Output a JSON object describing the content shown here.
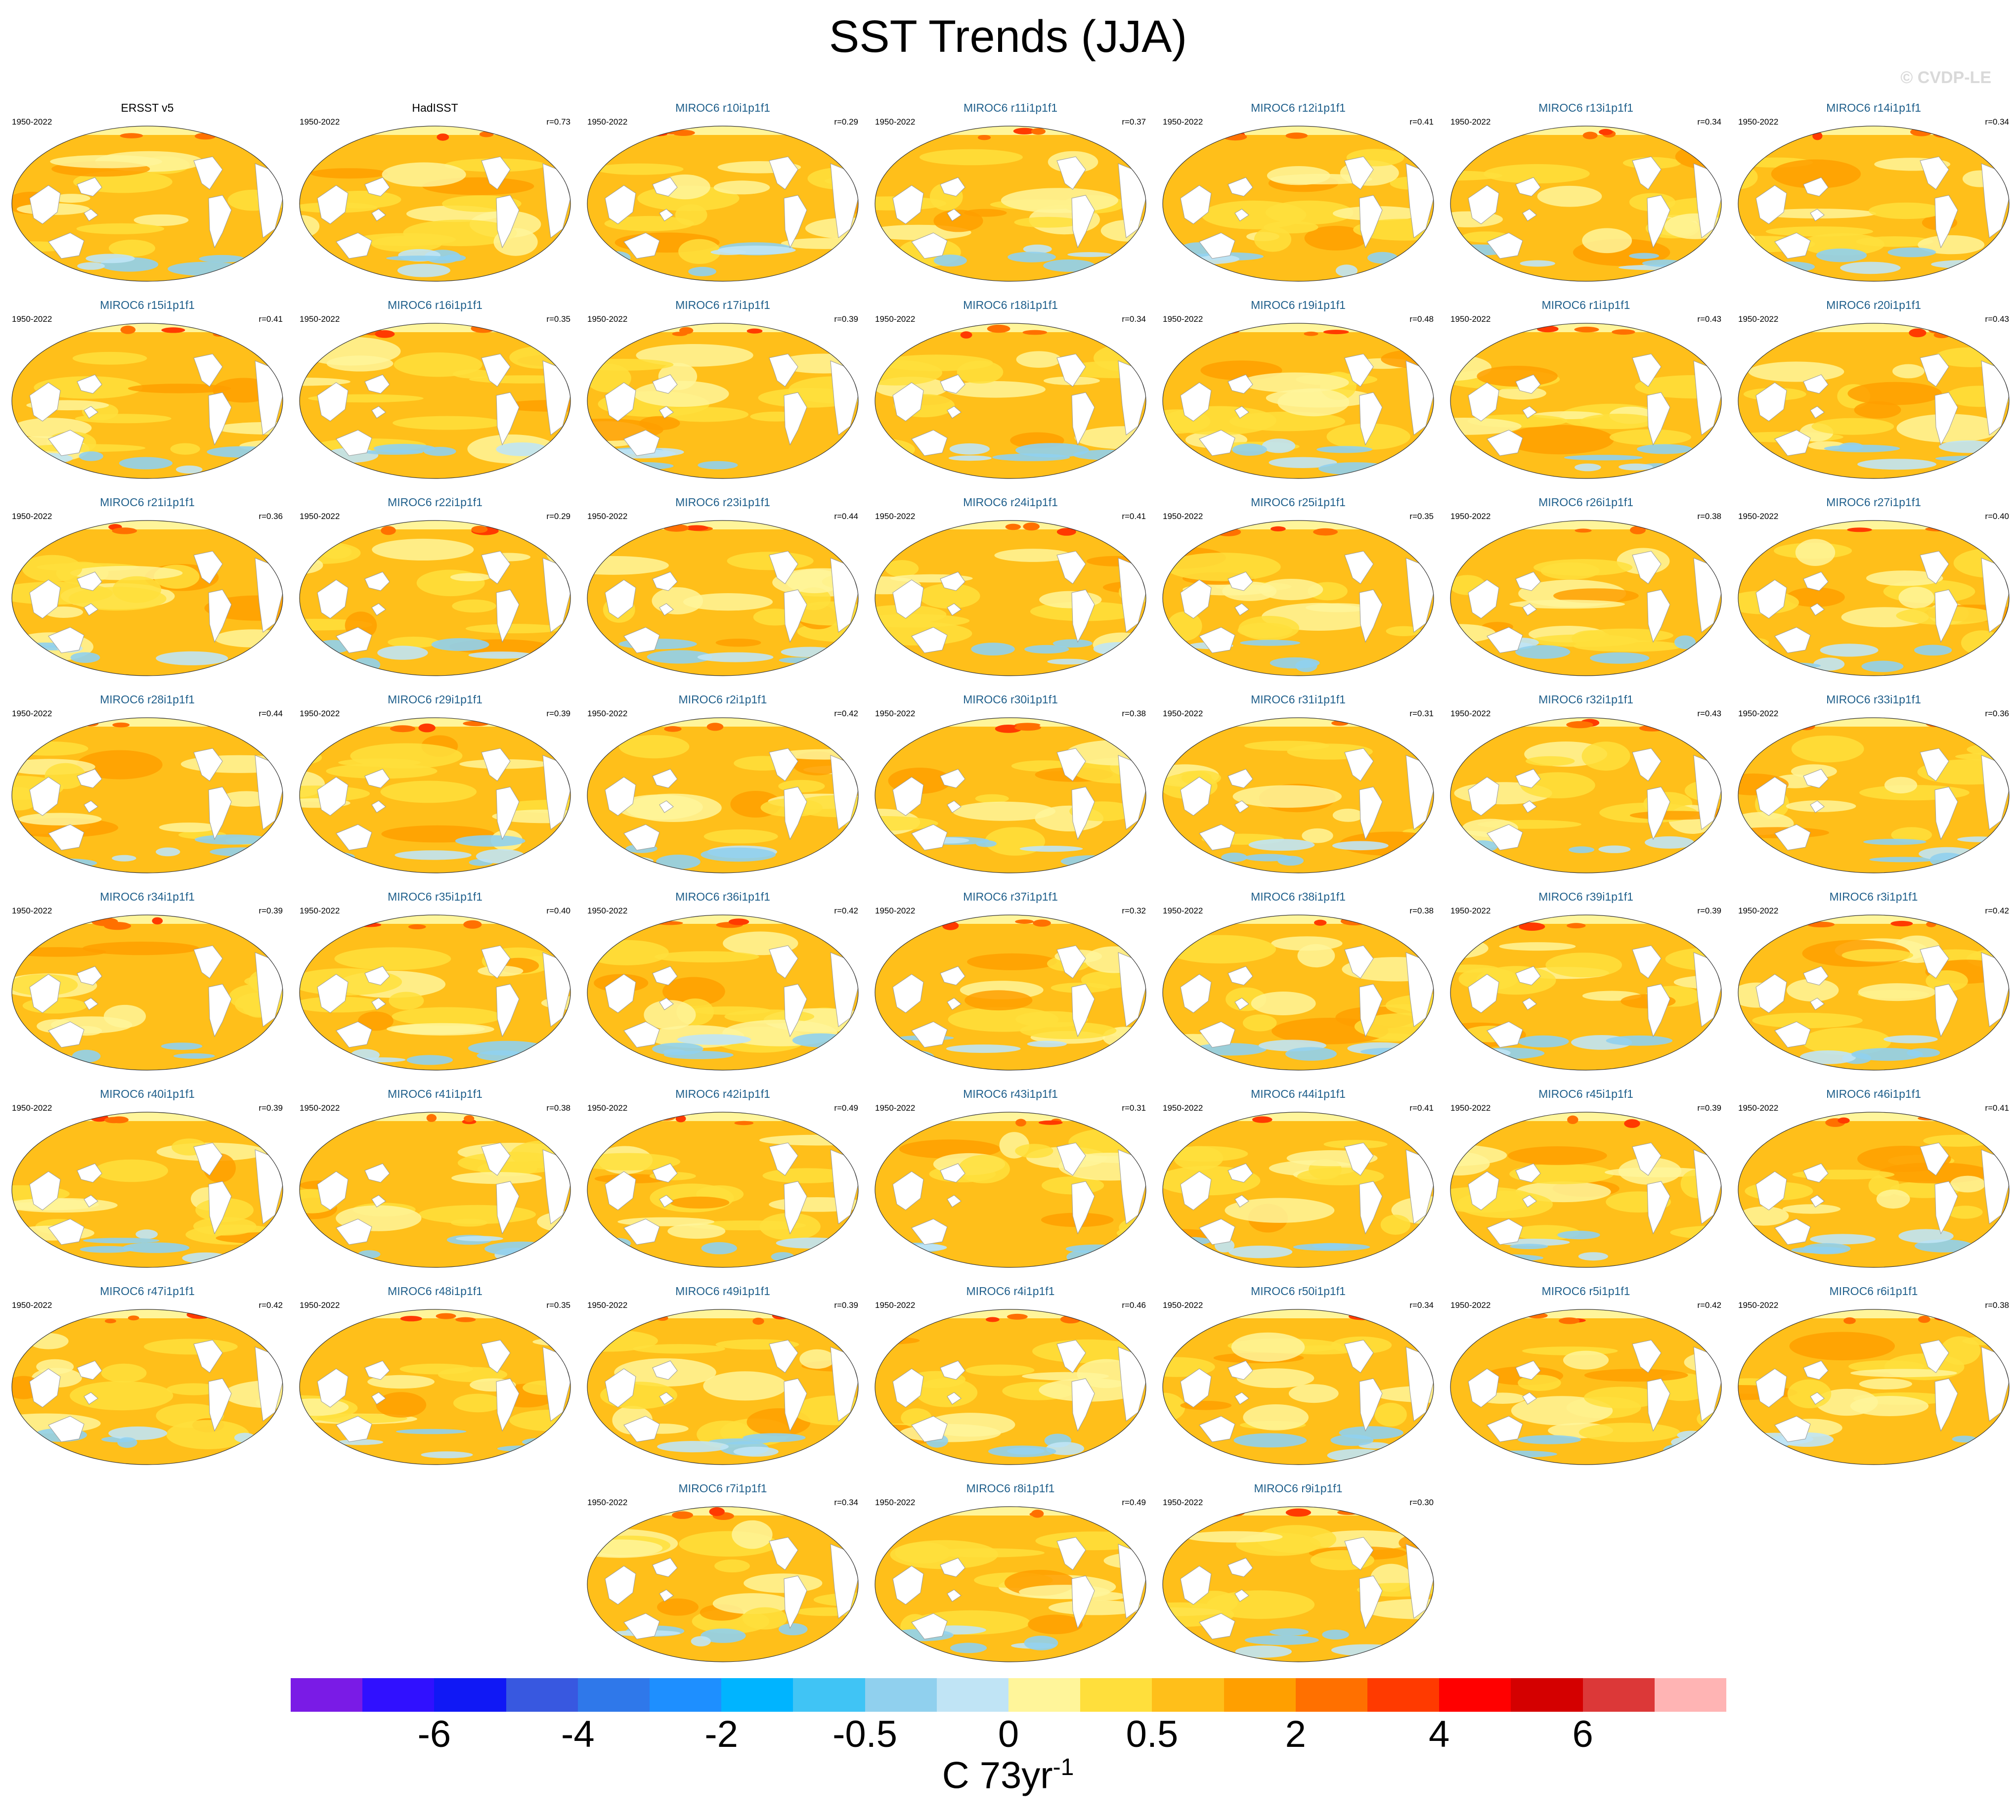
{
  "title": "SST Trends (JJA)",
  "copyright": "© CVDP-LE",
  "chart_data": {
    "type": "heatmap",
    "title": "SST Trends (JJA)",
    "period": "1950-2022",
    "units_base": "C 73yr",
    "units_exp": "-1",
    "colorbar": {
      "colors": [
        "#7a1be6",
        "#3010ff",
        "#1018f5",
        "#3858e0",
        "#2f78ea",
        "#1e8fff",
        "#00b4ff",
        "#40c4f5",
        "#90d0ee",
        "#c0e4f5",
        "#fff59a",
        "#ffdf3c",
        "#ffbf1a",
        "#ff9f00",
        "#ff7000",
        "#ff3a00",
        "#ff0000",
        "#d40000",
        "#dc3838",
        "#ffb4b4"
      ],
      "tick_labels": [
        "-6",
        "-4",
        "-2",
        "-0.5",
        "0",
        "0.5",
        "2",
        "4",
        "6"
      ]
    },
    "panels": [
      {
        "name": "ERSST v5",
        "period": "1950-2022",
        "r": "",
        "observed": true
      },
      {
        "name": "HadISST",
        "period": "1950-2022",
        "r": "r=0.73",
        "observed": true
      },
      {
        "name": "MIROC6 r10i1p1f1",
        "period": "1950-2022",
        "r": "r=0.29"
      },
      {
        "name": "MIROC6 r11i1p1f1",
        "period": "1950-2022",
        "r": "r=0.37"
      },
      {
        "name": "MIROC6 r12i1p1f1",
        "period": "1950-2022",
        "r": "r=0.41"
      },
      {
        "name": "MIROC6 r13i1p1f1",
        "period": "1950-2022",
        "r": "r=0.34"
      },
      {
        "name": "MIROC6 r14i1p1f1",
        "period": "1950-2022",
        "r": "r=0.34"
      },
      {
        "name": "MIROC6 r15i1p1f1",
        "period": "1950-2022",
        "r": "r=0.41"
      },
      {
        "name": "MIROC6 r16i1p1f1",
        "period": "1950-2022",
        "r": "r=0.35"
      },
      {
        "name": "MIROC6 r17i1p1f1",
        "period": "1950-2022",
        "r": "r=0.39"
      },
      {
        "name": "MIROC6 r18i1p1f1",
        "period": "1950-2022",
        "r": "r=0.34"
      },
      {
        "name": "MIROC6 r19i1p1f1",
        "period": "1950-2022",
        "r": "r=0.48"
      },
      {
        "name": "MIROC6 r1i1p1f1",
        "period": "1950-2022",
        "r": "r=0.43"
      },
      {
        "name": "MIROC6 r20i1p1f1",
        "period": "1950-2022",
        "r": "r=0.43"
      },
      {
        "name": "MIROC6 r21i1p1f1",
        "period": "1950-2022",
        "r": "r=0.36"
      },
      {
        "name": "MIROC6 r22i1p1f1",
        "period": "1950-2022",
        "r": "r=0.29"
      },
      {
        "name": "MIROC6 r23i1p1f1",
        "period": "1950-2022",
        "r": "r=0.44"
      },
      {
        "name": "MIROC6 r24i1p1f1",
        "period": "1950-2022",
        "r": "r=0.41"
      },
      {
        "name": "MIROC6 r25i1p1f1",
        "period": "1950-2022",
        "r": "r=0.35"
      },
      {
        "name": "MIROC6 r26i1p1f1",
        "period": "1950-2022",
        "r": "r=0.38"
      },
      {
        "name": "MIROC6 r27i1p1f1",
        "period": "1950-2022",
        "r": "r=0.40"
      },
      {
        "name": "MIROC6 r28i1p1f1",
        "period": "1950-2022",
        "r": "r=0.44"
      },
      {
        "name": "MIROC6 r29i1p1f1",
        "period": "1950-2022",
        "r": "r=0.39"
      },
      {
        "name": "MIROC6 r2i1p1f1",
        "period": "1950-2022",
        "r": "r=0.42"
      },
      {
        "name": "MIROC6 r30i1p1f1",
        "period": "1950-2022",
        "r": "r=0.38"
      },
      {
        "name": "MIROC6 r31i1p1f1",
        "period": "1950-2022",
        "r": "r=0.31"
      },
      {
        "name": "MIROC6 r32i1p1f1",
        "period": "1950-2022",
        "r": "r=0.43"
      },
      {
        "name": "MIROC6 r33i1p1f1",
        "period": "1950-2022",
        "r": "r=0.36"
      },
      {
        "name": "MIROC6 r34i1p1f1",
        "period": "1950-2022",
        "r": "r=0.39"
      },
      {
        "name": "MIROC6 r35i1p1f1",
        "period": "1950-2022",
        "r": "r=0.40"
      },
      {
        "name": "MIROC6 r36i1p1f1",
        "period": "1950-2022",
        "r": "r=0.42"
      },
      {
        "name": "MIROC6 r37i1p1f1",
        "period": "1950-2022",
        "r": "r=0.32"
      },
      {
        "name": "MIROC6 r38i1p1f1",
        "period": "1950-2022",
        "r": "r=0.38"
      },
      {
        "name": "MIROC6 r39i1p1f1",
        "period": "1950-2022",
        "r": "r=0.39"
      },
      {
        "name": "MIROC6 r3i1p1f1",
        "period": "1950-2022",
        "r": "r=0.42"
      },
      {
        "name": "MIROC6 r40i1p1f1",
        "period": "1950-2022",
        "r": "r=0.39"
      },
      {
        "name": "MIROC6 r41i1p1f1",
        "period": "1950-2022",
        "r": "r=0.38"
      },
      {
        "name": "MIROC6 r42i1p1f1",
        "period": "1950-2022",
        "r": "r=0.49"
      },
      {
        "name": "MIROC6 r43i1p1f1",
        "period": "1950-2022",
        "r": "r=0.31"
      },
      {
        "name": "MIROC6 r44i1p1f1",
        "period": "1950-2022",
        "r": "r=0.41"
      },
      {
        "name": "MIROC6 r45i1p1f1",
        "period": "1950-2022",
        "r": "r=0.39"
      },
      {
        "name": "MIROC6 r46i1p1f1",
        "period": "1950-2022",
        "r": "r=0.41"
      },
      {
        "name": "MIROC6 r47i1p1f1",
        "period": "1950-2022",
        "r": "r=0.42"
      },
      {
        "name": "MIROC6 r48i1p1f1",
        "period": "1950-2022",
        "r": "r=0.35"
      },
      {
        "name": "MIROC6 r49i1p1f1",
        "period": "1950-2022",
        "r": "r=0.39"
      },
      {
        "name": "MIROC6 r4i1p1f1",
        "period": "1950-2022",
        "r": "r=0.46"
      },
      {
        "name": "MIROC6 r50i1p1f1",
        "period": "1950-2022",
        "r": "r=0.34"
      },
      {
        "name": "MIROC6 r5i1p1f1",
        "period": "1950-2022",
        "r": "r=0.42"
      },
      {
        "name": "MIROC6 r6i1p1f1",
        "period": "1950-2022",
        "r": "r=0.38"
      },
      {
        "name": "MIROC6 r7i1p1f1",
        "period": "1950-2022",
        "r": "r=0.34"
      },
      {
        "name": "MIROC6 r8i1p1f1",
        "period": "1950-2022",
        "r": "r=0.49"
      },
      {
        "name": "MIROC6 r9i1p1f1",
        "period": "1950-2022",
        "r": "r=0.30"
      }
    ]
  }
}
